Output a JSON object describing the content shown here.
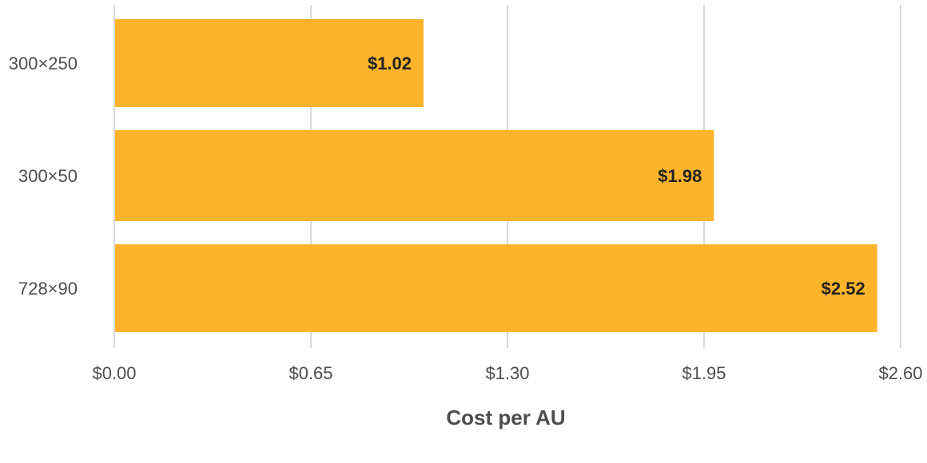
{
  "chart_data": {
    "type": "bar",
    "orientation": "horizontal",
    "categories": [
      "300×250",
      "300×50",
      "728×90"
    ],
    "values": [
      1.02,
      1.98,
      2.52
    ],
    "data_labels": [
      "$1.02",
      "$1.98",
      "$2.52"
    ],
    "xlabel": "Cost per AU",
    "ylabel": "",
    "xlim": [
      0,
      2.6
    ],
    "xticks": [
      0,
      0.65,
      1.3,
      1.95,
      2.6
    ],
    "xtick_labels": [
      "$0.00",
      "$0.65",
      "$1.30",
      "$1.95",
      "$2.60"
    ],
    "grid": "vertical",
    "legend": "none",
    "colors": {
      "bar": "#fdb42b",
      "grid": "#d9d9d9",
      "text": "#4d4d4d",
      "label": "#222222"
    }
  }
}
